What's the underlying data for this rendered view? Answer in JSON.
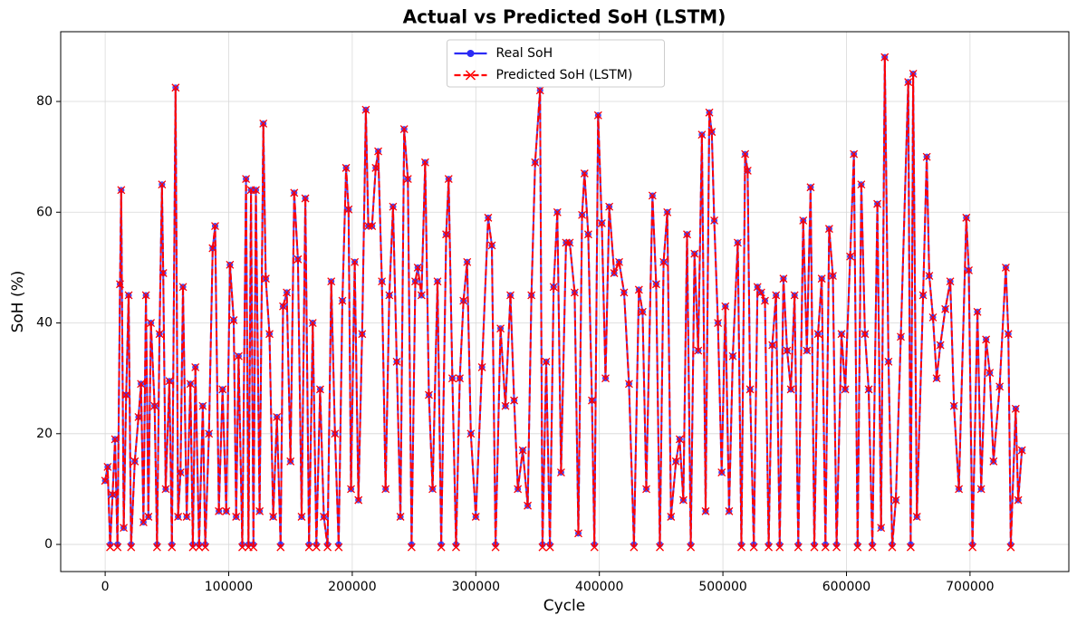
{
  "chart_data": {
    "type": "line",
    "title": "Actual vs Predicted SoH (LSTM)",
    "x_label": "Cycle",
    "y_label": "SoH (%)",
    "x": [
      0,
      2000,
      4000,
      6000,
      8000,
      10000,
      12000,
      13000,
      15000,
      17000,
      19000,
      21000,
      24000,
      27000,
      29000,
      31000,
      33000,
      35000,
      37000,
      40000,
      42000,
      44000,
      46000,
      47000,
      49000,
      52000,
      54000,
      57000,
      59000,
      61000,
      63000,
      66000,
      69000,
      71000,
      73000,
      76000,
      79000,
      81000,
      84000,
      87000,
      89000,
      92000,
      95000,
      98000,
      101000,
      104000,
      106000,
      108000,
      111000,
      114000,
      116000,
      118000,
      120000,
      122000,
      125000,
      128000,
      130000,
      133000,
      136000,
      139000,
      142000,
      144000,
      147000,
      150000,
      153000,
      156000,
      159000,
      162000,
      165000,
      168000,
      171000,
      174000,
      177000,
      180000,
      183000,
      186000,
      189000,
      192000,
      195000,
      197000,
      199000,
      202000,
      205000,
      208000,
      211000,
      213000,
      216000,
      219000,
      221000,
      224000,
      227000,
      230000,
      233000,
      236000,
      239000,
      242000,
      245000,
      248000,
      251000,
      253000,
      256000,
      259000,
      262000,
      265000,
      269000,
      272000,
      276000,
      278000,
      281000,
      284000,
      287000,
      290000,
      293000,
      296000,
      300000,
      305000,
      310000,
      313000,
      316000,
      320000,
      324000,
      328000,
      331000,
      334000,
      338000,
      342000,
      345000,
      348000,
      352000,
      354000,
      357000,
      360000,
      363000,
      366000,
      369000,
      373000,
      376000,
      380000,
      383000,
      386000,
      388000,
      391000,
      394000,
      396000,
      399000,
      402000,
      405000,
      408000,
      412000,
      416000,
      420000,
      424000,
      428000,
      432000,
      435000,
      438000,
      443000,
      446000,
      449000,
      452000,
      455000,
      458000,
      462000,
      465000,
      468000,
      471000,
      474000,
      477000,
      480000,
      483000,
      486000,
      489000,
      491000,
      493000,
      496000,
      499000,
      502000,
      505000,
      508000,
      512000,
      515000,
      518000,
      520000,
      522000,
      525000,
      528000,
      531000,
      534000,
      537000,
      540000,
      543000,
      546000,
      549000,
      552000,
      555000,
      558000,
      561000,
      565000,
      568000,
      571000,
      574000,
      577000,
      580000,
      583000,
      586000,
      589000,
      592000,
      596000,
      599000,
      603000,
      606000,
      609000,
      612000,
      615000,
      618000,
      621000,
      625000,
      628000,
      631000,
      634000,
      637000,
      640000,
      644000,
      650000,
      652000,
      654000,
      657000,
      662000,
      665000,
      667000,
      670000,
      673000,
      676000,
      680000,
      684000,
      687000,
      691000,
      697000,
      699000,
      702000,
      706000,
      709000,
      713000,
      716000,
      719000,
      724000,
      729000,
      731000,
      733000,
      737000,
      739000,
      742000
    ],
    "series": [
      {
        "name": "Real SoH",
        "color": "#2b2bf5",
        "values": [
          11.5,
          14,
          0,
          9,
          19,
          0,
          47,
          64,
          3,
          27,
          45,
          0,
          15,
          23,
          29,
          4,
          45,
          5,
          40,
          25,
          0,
          38,
          65,
          49,
          10,
          29.5,
          0,
          82.5,
          5,
          13,
          46.5,
          5,
          29,
          0,
          32,
          0,
          25,
          0,
          20,
          53.5,
          57.5,
          6,
          28,
          6,
          50.5,
          40.5,
          5,
          34,
          0,
          66,
          0,
          64,
          0,
          64,
          6,
          76,
          48,
          38,
          5,
          23,
          0,
          43,
          45.5,
          15,
          63.5,
          51.5,
          5,
          62.5,
          0,
          40,
          0,
          28,
          5,
          0,
          47.5,
          20,
          0,
          44,
          68,
          60.5,
          10,
          51,
          8,
          38,
          78.5,
          57.5,
          57.5,
          68,
          71,
          47.5,
          10,
          45,
          61,
          33,
          5,
          75,
          66,
          0,
          47.5,
          50,
          45,
          69,
          27,
          10,
          47.5,
          0,
          56,
          66,
          30,
          0,
          30,
          44,
          51,
          20,
          5,
          32,
          59,
          54,
          0,
          39,
          25,
          45,
          26,
          10,
          17,
          7,
          45,
          69,
          82,
          0,
          33,
          0,
          46.5,
          60,
          13,
          54.5,
          54.5,
          45.5,
          2,
          59.5,
          67,
          56,
          26,
          0,
          77.5,
          58,
          30,
          61,
          49,
          51,
          45.5,
          29,
          0,
          46,
          42,
          10,
          63,
          47,
          0,
          51,
          60,
          5,
          15,
          19,
          8,
          56,
          0,
          52.5,
          35,
          74,
          6,
          78,
          74.5,
          58.5,
          40,
          13,
          43,
          6,
          34,
          54.5,
          0,
          70.5,
          67.5,
          28,
          0,
          46.5,
          45.5,
          44,
          0,
          36,
          45,
          0,
          48,
          35,
          28,
          45,
          0,
          58.5,
          35,
          64.5,
          0,
          38,
          48,
          0,
          57,
          48.5,
          0,
          38,
          28,
          52,
          70.5,
          0,
          65,
          38,
          28,
          0,
          61.5,
          3,
          88,
          33,
          0,
          8,
          37.5,
          83.5,
          0,
          85,
          5,
          45,
          70,
          48.5,
          41,
          30,
          36,
          42.5,
          47.5,
          25,
          10,
          59,
          49.5,
          0,
          42,
          10,
          37,
          31,
          15,
          28.5,
          50,
          38,
          0,
          24.5,
          8,
          17
        ]
      },
      {
        "name": "Predicted SoH (LSTM)",
        "color": "#ff0000",
        "values": [
          11.5,
          14,
          -0.5,
          9,
          19,
          -0.5,
          47,
          64,
          3,
          27,
          45,
          -0.5,
          15,
          23,
          29,
          4,
          45,
          5,
          40,
          25,
          -0.5,
          38,
          65,
          49,
          10,
          29.5,
          -0.5,
          82.5,
          5,
          13,
          46.5,
          5,
          29,
          -0.5,
          32,
          -0.5,
          25,
          -0.5,
          20,
          53.5,
          57.5,
          6,
          28,
          6,
          50.5,
          40.5,
          5,
          34,
          -0.5,
          66,
          -0.5,
          64,
          -0.5,
          64,
          6,
          76,
          48,
          38,
          5,
          23,
          -0.5,
          43,
          45.5,
          15,
          63.5,
          51.5,
          5,
          62.5,
          -0.5,
          40,
          -0.5,
          28,
          5,
          -0.5,
          47.5,
          20,
          -0.5,
          44,
          68,
          60.5,
          10,
          51,
          8,
          38,
          78.5,
          57.5,
          57.5,
          68,
          71,
          47.5,
          10,
          45,
          61,
          33,
          5,
          75,
          66,
          -0.5,
          47.5,
          50,
          45,
          69,
          27,
          10,
          47.5,
          -0.5,
          56,
          66,
          30,
          -0.5,
          30,
          44,
          51,
          20,
          5,
          32,
          59,
          54,
          -0.5,
          39,
          25,
          45,
          26,
          10,
          17,
          7,
          45,
          69,
          82,
          -0.5,
          33,
          -0.5,
          46.5,
          60,
          13,
          54.5,
          54.5,
          45.5,
          2,
          59.5,
          67,
          56,
          26,
          -0.5,
          77.5,
          58,
          30,
          61,
          49,
          51,
          45.5,
          29,
          -0.5,
          46,
          42,
          10,
          63,
          47,
          -0.5,
          51,
          60,
          5,
          15,
          19,
          8,
          56,
          -0.5,
          52.5,
          35,
          74,
          6,
          78,
          74.5,
          58.5,
          40,
          13,
          43,
          6,
          34,
          54.5,
          -0.5,
          70.5,
          67.5,
          28,
          -0.5,
          46.5,
          45.5,
          44,
          -0.5,
          36,
          45,
          -0.5,
          48,
          35,
          28,
          45,
          -0.5,
          58.5,
          35,
          64.5,
          -0.5,
          38,
          48,
          -0.5,
          57,
          48.5,
          -0.5,
          38,
          28,
          52,
          70.5,
          -0.5,
          65,
          38,
          28,
          -0.5,
          61.5,
          3,
          88,
          33,
          -0.5,
          8,
          37.5,
          83.5,
          -0.5,
          85,
          5,
          45,
          70,
          48.5,
          41,
          30,
          36,
          42.5,
          47.5,
          25,
          10,
          59,
          49.5,
          -0.5,
          42,
          10,
          37,
          31,
          15,
          28.5,
          50,
          38,
          -0.5,
          24.5,
          8,
          17
        ]
      }
    ],
    "xlim": [
      -36000,
      780000
    ],
    "xticks": [
      0,
      100000,
      200000,
      300000,
      400000,
      500000,
      600000,
      700000
    ],
    "ylim": [
      -4.9,
      92.6
    ],
    "yticks": [
      0,
      20,
      40,
      60,
      80
    ],
    "grid": true,
    "legend": "upper center"
  }
}
